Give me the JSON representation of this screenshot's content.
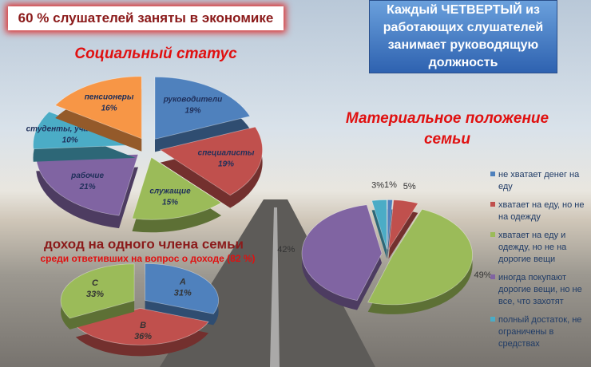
{
  "header": {
    "text": "60 % слушателей заняты в экономике"
  },
  "callout": {
    "text": "Каждый ЧЕТВЕРТЫЙ из работающих слушателей занимает руководящую должность"
  },
  "chart_data": [
    {
      "type": "pie",
      "title": "Социальный статус",
      "categories": [
        "руководители",
        "специалисты",
        "служащие",
        "рабочие",
        "студенты, учащиеся",
        "пенсионеры"
      ],
      "values": [
        19,
        19,
        15,
        21,
        10,
        16
      ],
      "value_labels": [
        "19%",
        "19%",
        "15%",
        "21%",
        "10%",
        "16%"
      ],
      "colors": [
        "#4f81bd",
        "#c0504d",
        "#9bbb59",
        "#8064a2",
        "#4bacc6",
        "#f79646"
      ]
    },
    {
      "type": "pie",
      "title": "доход на одного члена семьи",
      "subtitle": "среди ответивших на вопрос о доходе (82 %)",
      "categories": [
        "А",
        "В",
        "С"
      ],
      "values": [
        31,
        36,
        33
      ],
      "value_labels": [
        "31%",
        "36%",
        "33%"
      ],
      "colors": [
        "#4f81bd",
        "#c0504d",
        "#9bbb59"
      ]
    },
    {
      "type": "pie",
      "title": "Материальное положение семьи",
      "categories": [
        "не хватает денег на еду",
        "хватает на еду, но не на одежду",
        "хватает на еду и одежду, но не на дорогие вещи",
        "иногда покупают дорогие вещи, но не все, что захотят",
        "полный достаток, не ограничены в средствах"
      ],
      "values": [
        1,
        5,
        49,
        42,
        3
      ],
      "value_labels": [
        "1%",
        "5%",
        "49%",
        "42%",
        "3%"
      ],
      "colors": [
        "#4f81bd",
        "#c0504d",
        "#9bbb59",
        "#8064a2",
        "#4bacc6"
      ],
      "legend": "right"
    }
  ]
}
